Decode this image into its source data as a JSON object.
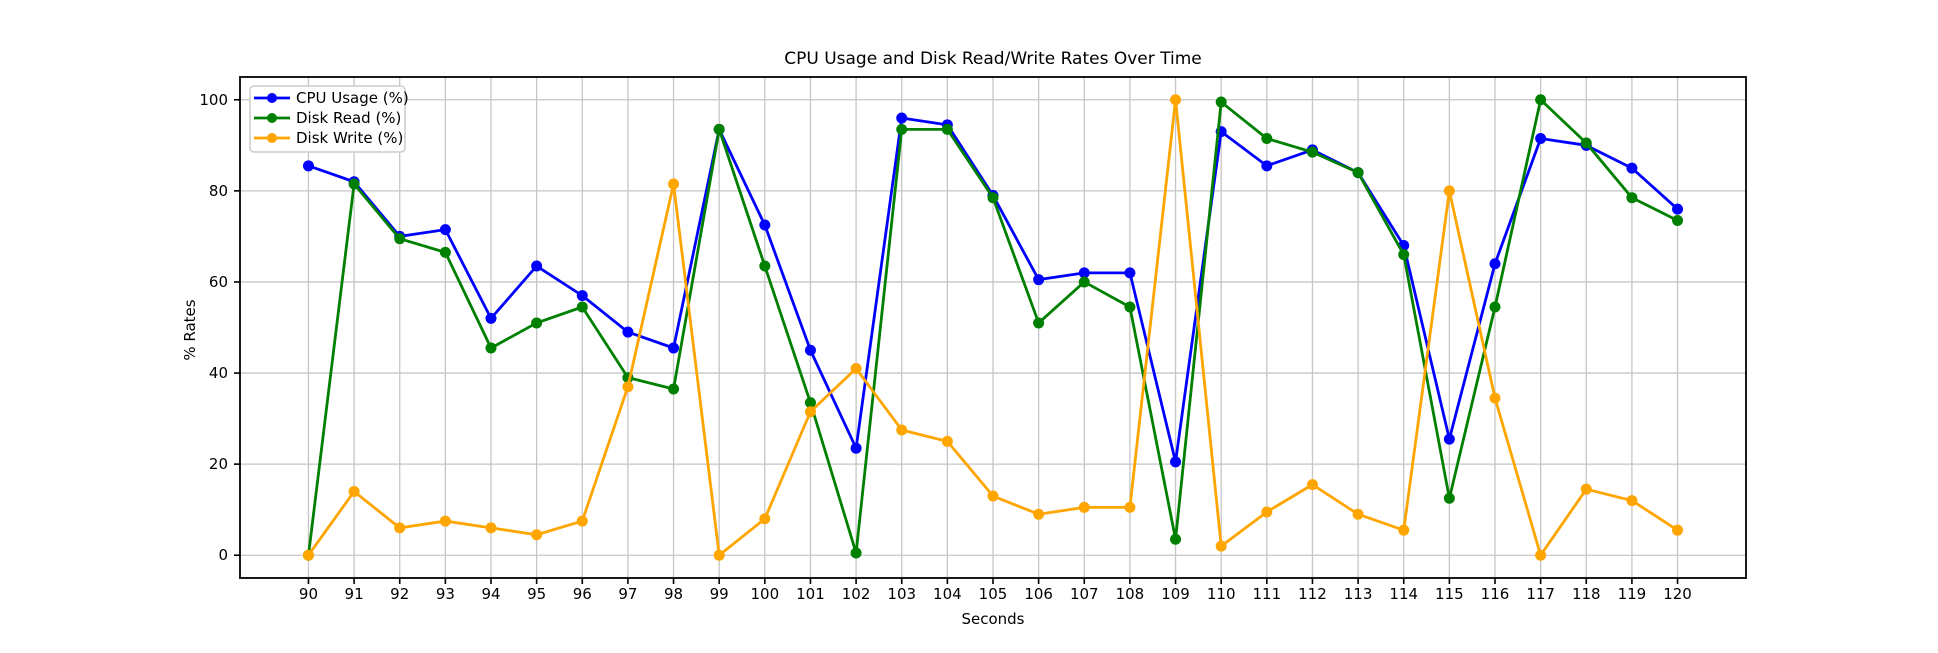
{
  "figure": {
    "background": "#ffffff",
    "text_color": "#000000",
    "grid_color": "#c6c6c6",
    "spine_color": "#000000"
  },
  "chart_data": {
    "type": "line",
    "title": "CPU Usage and Disk Read/Write Rates Over Time",
    "xlabel": "Seconds",
    "ylabel": "% Rates",
    "x": [
      90,
      91,
      92,
      93,
      94,
      95,
      96,
      97,
      98,
      99,
      100,
      101,
      102,
      103,
      104,
      105,
      106,
      107,
      108,
      109,
      110,
      111,
      112,
      113,
      114,
      115,
      116,
      117,
      118,
      119,
      120
    ],
    "series": [
      {
        "name": "CPU Usage (%)",
        "color": "#0000ff",
        "values": [
          85.5,
          82,
          70,
          71.5,
          52,
          63.5,
          57,
          49,
          45.5,
          93.5,
          72.5,
          45,
          23.5,
          96,
          94.5,
          79,
          60.5,
          62,
          62,
          20.5,
          93,
          85.5,
          89,
          84,
          68,
          25.5,
          64,
          91.5,
          90,
          85,
          76
        ]
      },
      {
        "name": "Disk Read (%)",
        "color": "#008000",
        "values": [
          0,
          81.5,
          69.5,
          66.5,
          45.5,
          51,
          54.5,
          39,
          36.5,
          93.5,
          63.5,
          33.5,
          0.5,
          93.5,
          93.5,
          78.5,
          51,
          60,
          54.5,
          3.5,
          99.5,
          91.5,
          88.5,
          84,
          66,
          12.5,
          54.5,
          100,
          90.5,
          78.5,
          73.5
        ]
      },
      {
        "name": "Disk Write (%)",
        "color": "#ffa500",
        "values": [
          0,
          14,
          6,
          7.5,
          6,
          4.5,
          7.5,
          37,
          81.5,
          0,
          8,
          31.5,
          41,
          27.5,
          25,
          13,
          9,
          10.5,
          10.5,
          100,
          2,
          9.5,
          15.5,
          9,
          5.5,
          80,
          34.5,
          0,
          14.5,
          12,
          5.5
        ]
      }
    ],
    "xlim": [
      88.5,
      121.5
    ],
    "ylim": [
      -5,
      105
    ],
    "yticks": [
      0,
      20,
      40,
      60,
      80,
      100
    ],
    "grid": true,
    "marker": "circle",
    "legend": {
      "position": "upper-left",
      "entries": [
        "CPU Usage (%)",
        "Disk Read (%)",
        "Disk Write (%)"
      ]
    }
  }
}
